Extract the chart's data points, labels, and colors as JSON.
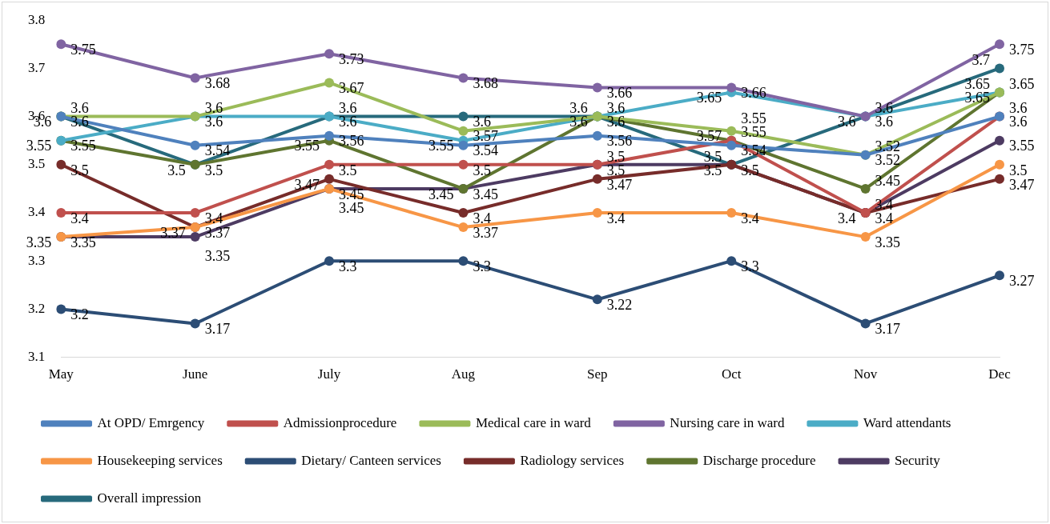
{
  "chart_data": {
    "type": "line",
    "categories": [
      "May",
      "June",
      "July",
      "Aug",
      "Sep",
      "Oct",
      "Nov",
      "Dec"
    ],
    "series": [
      {
        "name": "At OPD/ Emrgency",
        "color": "#4f81bd",
        "values": [
          3.6,
          3.54,
          3.56,
          3.54,
          3.56,
          3.54,
          3.52,
          3.6
        ]
      },
      {
        "name": "Admissionprocedure",
        "color": "#c0504d",
        "values": [
          3.4,
          3.4,
          3.5,
          3.5,
          3.5,
          3.55,
          3.4,
          3.6
        ]
      },
      {
        "name": "Medical care in ward",
        "color": "#9bbb59",
        "values": [
          3.6,
          3.6,
          3.67,
          3.57,
          3.6,
          3.57,
          3.52,
          3.65
        ]
      },
      {
        "name": "Nursing care in ward",
        "color": "#8064a2",
        "values": [
          3.75,
          3.68,
          3.73,
          3.68,
          3.66,
          3.66,
          3.6,
          3.75
        ]
      },
      {
        "name": "Ward attendants",
        "color": "#4bacc6",
        "values": [
          3.55,
          3.6,
          3.6,
          3.55,
          3.6,
          3.65,
          3.6,
          3.65
        ]
      },
      {
        "name": "Housekeeping services",
        "color": "#f79646",
        "values": [
          3.35,
          3.37,
          3.45,
          3.37,
          3.4,
          3.4,
          3.35,
          3.5
        ]
      },
      {
        "name": "Dietary/ Canteen services",
        "color": "#2c4d75",
        "values": [
          3.2,
          3.17,
          3.3,
          3.3,
          3.22,
          3.3,
          3.17,
          3.27
        ]
      },
      {
        "name": "Radiology services",
        "color": "#772c2a",
        "values": [
          3.5,
          3.37,
          3.47,
          3.4,
          3.47,
          3.5,
          3.4,
          3.47
        ]
      },
      {
        "name": "Discharge procedure",
        "color": "#5f7530",
        "values": [
          3.55,
          3.5,
          3.55,
          3.45,
          3.6,
          3.55,
          3.45,
          3.65
        ]
      },
      {
        "name": "Security",
        "color": "#4d3b62",
        "values": [
          3.35,
          3.35,
          3.45,
          3.45,
          3.5,
          3.5,
          3.4,
          3.55
        ]
      },
      {
        "name": "Overall impression",
        "color": "#276a7c",
        "values": [
          3.6,
          3.5,
          3.6,
          3.6,
          3.6,
          3.5,
          3.6,
          3.7
        ]
      }
    ],
    "ylim": [
      3.1,
      3.8
    ],
    "yticks": [
      3.1,
      3.2,
      3.3,
      3.4,
      3.5,
      3.6,
      3.7,
      3.8
    ],
    "grid": false,
    "legend": "bottom",
    "marker": "circle",
    "line_style": "solid",
    "data_labels": true
  }
}
